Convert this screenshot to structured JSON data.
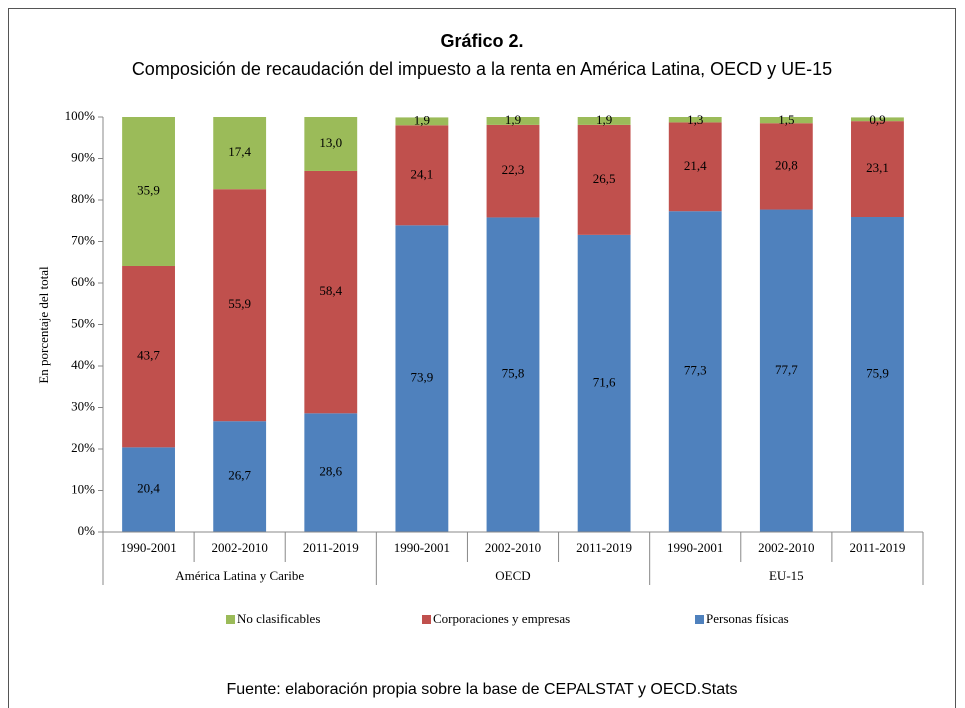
{
  "chart_data": {
    "type": "stacked_bar",
    "title": "Gráfico 2.",
    "subtitle": "Composición de recaudación del impuesto a la renta en América Latina, OECD y UE-15",
    "y_label": "En porcentaje del total",
    "source": "Fuente: elaboración propia sobre la base de CEPALSTAT y OECD.Stats",
    "categories": [
      "1990-2001",
      "2002-2010",
      "2011-2019",
      "1990-2001",
      "2002-2010",
      "2011-2019",
      "1990-2001",
      "2002-2010",
      "2011-2019"
    ],
    "groups": [
      "América Latina y Caribe",
      "OECD",
      "EU-15"
    ],
    "series": [
      {
        "name": "Personas físicas",
        "color": "#4f81bd",
        "values": [
          20.4,
          26.7,
          28.6,
          73.9,
          75.8,
          71.6,
          77.3,
          77.7,
          75.9
        ],
        "value_labels": [
          "20,4",
          "26,7",
          "28,6",
          "73,9",
          "75,8",
          "71,6",
          "77,3",
          "77,7",
          "75,9"
        ]
      },
      {
        "name": "Corporaciones y empresas",
        "color": "#c0504d",
        "values": [
          43.7,
          55.9,
          58.4,
          24.1,
          22.3,
          26.5,
          21.4,
          20.8,
          23.1
        ],
        "value_labels": [
          "43,7",
          "55,9",
          "58,4",
          "24,1",
          "22,3",
          "26,5",
          "21,4",
          "20,8",
          "23,1"
        ]
      },
      {
        "name": "No clasificables",
        "color": "#9bbb59",
        "values": [
          35.9,
          17.4,
          13.0,
          1.9,
          1.9,
          1.9,
          1.3,
          1.5,
          0.9
        ],
        "value_labels": [
          "35,9",
          "17,4",
          "13,0",
          "1,9",
          "1,9",
          "1,9",
          "1,3",
          "1,5",
          "0,9"
        ]
      }
    ],
    "ylim": [
      0,
      100
    ],
    "yticks": [
      {
        "value": 0,
        "label": "0%"
      },
      {
        "value": 10,
        "label": "10%"
      },
      {
        "value": 20,
        "label": "20%"
      },
      {
        "value": 30,
        "label": "30%"
      },
      {
        "value": 40,
        "label": "40%"
      },
      {
        "value": 50,
        "label": "50%"
      },
      {
        "value": 60,
        "label": "60%"
      },
      {
        "value": 70,
        "label": "70%"
      },
      {
        "value": 80,
        "label": "80%"
      },
      {
        "value": 90,
        "label": "90%"
      },
      {
        "value": 100,
        "label": "100%"
      }
    ],
    "legend": "bottom"
  }
}
